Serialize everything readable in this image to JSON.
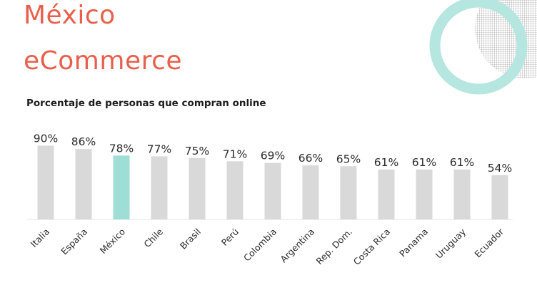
{
  "header": {
    "title_line1": "México",
    "title_line2": "eCommerce",
    "subtitle": "Porcentaje de personas que compran online"
  },
  "colors": {
    "title": "#e8604c",
    "bar": "#d9d9d9",
    "highlight": "#9fded6",
    "ring": "#b5e6df",
    "hatch": "#8c8c8c"
  },
  "chart_data": {
    "type": "bar",
    "title": "Porcentaje de personas que compran online",
    "categories": [
      "Italia",
      "España",
      "México",
      "Chile",
      "Brasil",
      "Perú",
      "Colombia",
      "Argentina",
      "Rep. Dom.",
      "Costa Rica",
      "Panama",
      "Uruguay",
      "Ecuador"
    ],
    "values": [
      90,
      86,
      78,
      77,
      75,
      71,
      69,
      66,
      65,
      61,
      61,
      61,
      54
    ],
    "value_labels": [
      "90%",
      "86%",
      "78%",
      "77%",
      "75%",
      "71%",
      "69%",
      "66%",
      "65%",
      "61%",
      "61%",
      "61%",
      "54%"
    ],
    "highlight_category": "México",
    "ylim": [
      0,
      100
    ],
    "grid": false,
    "legend": "none"
  }
}
